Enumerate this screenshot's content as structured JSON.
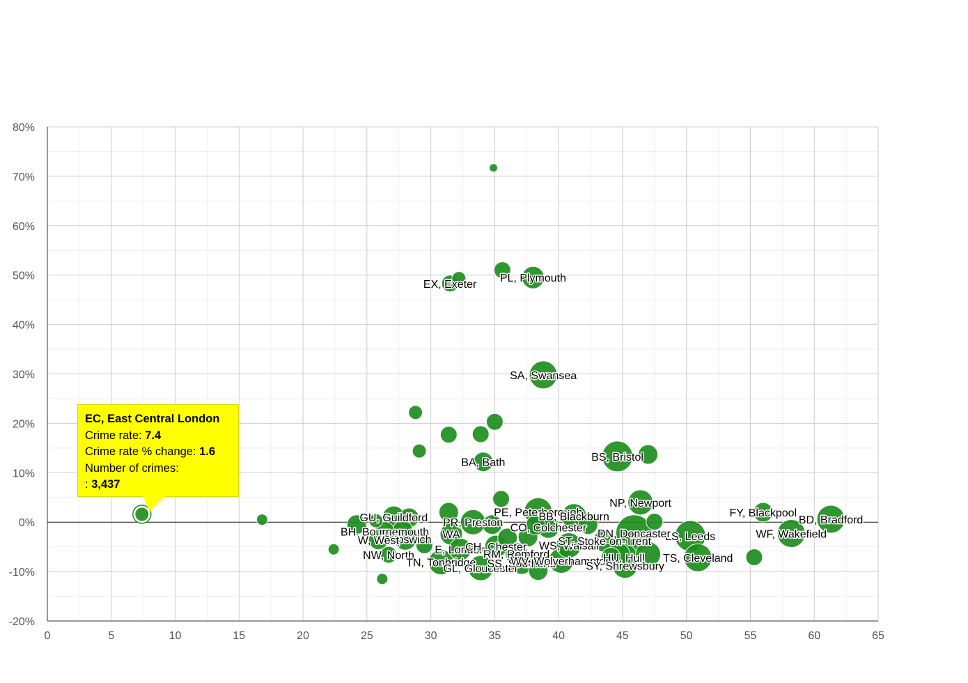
{
  "chart_data": {
    "type": "scatter",
    "title": "",
    "xlabel": "",
    "ylabel": "",
    "xlim": [
      0,
      65
    ],
    "ylim": [
      -20,
      80
    ],
    "x_ticks": [
      "0",
      "5",
      "10",
      "15",
      "20",
      "25",
      "30",
      "35",
      "40",
      "45",
      "50",
      "55",
      "60",
      "65"
    ],
    "y_ticks": [
      "-20%",
      "-10%",
      "0%",
      "10%",
      "20%",
      "30%",
      "40%",
      "50%",
      "60%",
      "70%",
      "80%"
    ],
    "grid": true,
    "point_color": "#1f8f1f",
    "points": [
      {
        "x": 7.4,
        "y": 1.6,
        "size": 4,
        "label": "",
        "highlight": true
      },
      {
        "x": 16.8,
        "y": 0.5,
        "size": 3
      },
      {
        "x": 22.4,
        "y": -5.5,
        "size": 3
      },
      {
        "x": 26.2,
        "y": -11.5,
        "size": 3
      },
      {
        "x": 34.9,
        "y": 71.7,
        "size": 2
      },
      {
        "x": 35.6,
        "y": 51.0,
        "size": 5
      },
      {
        "x": 38.0,
        "y": 49.5,
        "size": 7,
        "label": "PL, Plymouth"
      },
      {
        "x": 32.2,
        "y": 49.3,
        "size": 4
      },
      {
        "x": 31.5,
        "y": 48.3,
        "size": 5,
        "label": "EX, Exeter"
      },
      {
        "x": 38.8,
        "y": 29.8,
        "size": 9,
        "label": "SA, Swansea"
      },
      {
        "x": 28.8,
        "y": 22.2,
        "size": 4
      },
      {
        "x": 35.0,
        "y": 20.3,
        "size": 5
      },
      {
        "x": 31.4,
        "y": 17.7,
        "size": 5
      },
      {
        "x": 33.9,
        "y": 17.8,
        "size": 5
      },
      {
        "x": 29.1,
        "y": 14.4,
        "size": 4
      },
      {
        "x": 44.6,
        "y": 13.3,
        "size": 10,
        "label": "BS, Bristol"
      },
      {
        "x": 47.0,
        "y": 13.7,
        "size": 6
      },
      {
        "x": 34.1,
        "y": 12.2,
        "size": 6,
        "label": "BA, Bath"
      },
      {
        "x": 35.5,
        "y": 4.7,
        "size": 5
      },
      {
        "x": 46.4,
        "y": 4.0,
        "size": 8,
        "label": "NP, Newport"
      },
      {
        "x": 56.0,
        "y": 2.0,
        "size": 6,
        "label": "FY, Blackpool"
      },
      {
        "x": 61.3,
        "y": 0.6,
        "size": 9,
        "label": "BD, Bradford"
      },
      {
        "x": 58.2,
        "y": -2.3,
        "size": 9,
        "label": "WF, Wakefield"
      },
      {
        "x": 50.3,
        "y": -2.8,
        "size": 10,
        "label": "LS, Leeds"
      },
      {
        "x": 50.9,
        "y": -7.2,
        "size": 9,
        "label": "TS, Cleveland"
      },
      {
        "x": 55.3,
        "y": -7.1,
        "size": 5
      },
      {
        "x": 47.5,
        "y": 0.1,
        "size": 5
      },
      {
        "x": 24.2,
        "y": -0.5,
        "size": 6
      },
      {
        "x": 25.7,
        "y": 0.3,
        "size": 4
      },
      {
        "x": 27.1,
        "y": 1.0,
        "size": 7,
        "label": "GU, Guildford"
      },
      {
        "x": 28.3,
        "y": 0.9,
        "size": 6
      },
      {
        "x": 26.4,
        "y": -1.9,
        "size": 6,
        "label": "BH, Bournemouth"
      },
      {
        "x": 27.8,
        "y": -1.6,
        "size": 6
      },
      {
        "x": 28.0,
        "y": -3.4,
        "size": 7,
        "label": "IP, Ipswich"
      },
      {
        "x": 25.9,
        "y": -3.6,
        "size": 6,
        "label": "W, West"
      },
      {
        "x": 26.7,
        "y": -6.6,
        "size": 5,
        "label": "NW, North"
      },
      {
        "x": 29.5,
        "y": -4.7,
        "size": 5
      },
      {
        "x": 30.8,
        "y": -8.1,
        "size": 8,
        "label": "TN, Tonbridge"
      },
      {
        "x": 31.4,
        "y": 2.0,
        "size": 6
      },
      {
        "x": 31.6,
        "y": -2.4,
        "size": 7,
        "label": "WA"
      },
      {
        "x": 32.3,
        "y": -5.5,
        "size": 7,
        "label": "E, London"
      },
      {
        "x": 33.3,
        "y": 0.0,
        "size": 8,
        "label": "PR, Preston"
      },
      {
        "x": 33.9,
        "y": -9.3,
        "size": 8,
        "label": "GL, Gloucester"
      },
      {
        "x": 34.8,
        "y": -0.5,
        "size": 6
      },
      {
        "x": 35.1,
        "y": -4.9,
        "size": 7,
        "label": "CH, Chester"
      },
      {
        "x": 36.0,
        "y": -3.2,
        "size": 6
      },
      {
        "x": 36.7,
        "y": -6.4,
        "size": 7,
        "label": "RM, Romford"
      },
      {
        "x": 37.1,
        "y": -8.3,
        "size": 7,
        "label": "SS, Southend"
      },
      {
        "x": 37.6,
        "y": -3.0,
        "size": 6
      },
      {
        "x": 38.2,
        "y": -0.6,
        "size": 6
      },
      {
        "x": 38.4,
        "y": 2.1,
        "size": 9,
        "label": "PE, Peterborough"
      },
      {
        "x": 38.4,
        "y": -9.8,
        "size": 6
      },
      {
        "x": 39.2,
        "y": -1.0,
        "size": 7,
        "label": "CO, Colchester"
      },
      {
        "x": 40.2,
        "y": -7.8,
        "size": 8,
        "label": "WV, Wolverhampton"
      },
      {
        "x": 40.8,
        "y": -4.7,
        "size": 8,
        "label": "WS, Walsall"
      },
      {
        "x": 41.2,
        "y": 1.2,
        "size": 8,
        "label": "BB, Blackburn"
      },
      {
        "x": 42.3,
        "y": -0.5,
        "size": 6
      },
      {
        "x": 43.6,
        "y": -3.8,
        "size": 7,
        "label": "ST, Stoke-on-Trent"
      },
      {
        "x": 44.1,
        "y": -7.1,
        "size": 6
      },
      {
        "x": 44.7,
        "y": -6.5,
        "size": 7
      },
      {
        "x": 45.1,
        "y": -7.2,
        "size": 9,
        "label": "HU, Hull"
      },
      {
        "x": 45.2,
        "y": -8.8,
        "size": 8,
        "label": "SY, Shrewsbury"
      },
      {
        "x": 45.9,
        "y": -2.2,
        "size": 12,
        "label": "DN, Doncaster"
      },
      {
        "x": 47.0,
        "y": -6.5,
        "size": 8
      }
    ]
  },
  "tooltip": {
    "title": "EC, East Central London",
    "rate_label": "Crime rate:",
    "rate_value": "7.4",
    "change_label": "Crime rate % change:",
    "change_value": "1.6",
    "crimes_label": "Number of crimes:",
    "crimes_prefix": ":",
    "crimes_value": "3,437"
  }
}
